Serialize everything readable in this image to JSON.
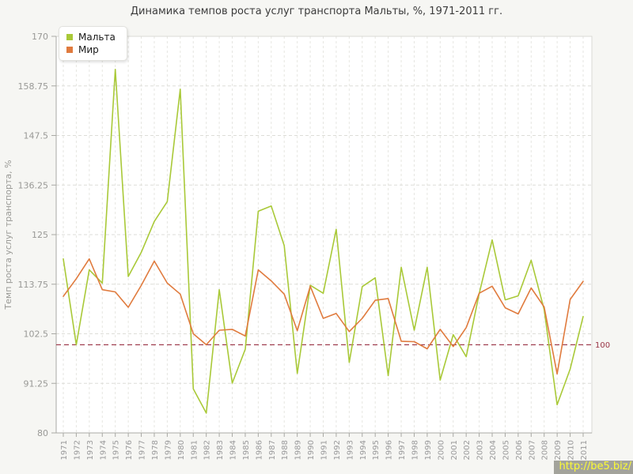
{
  "title": "Динамика темпов роста услуг транспорта Мальты, %, 1971-2011 гг.",
  "watermark": "http://be5.biz/",
  "chart_data": {
    "type": "line",
    "title": "Динамика темпов роста услуг транспорта Мальты, %, 1971-2011 гг.",
    "xlabel": "",
    "ylabel": "Темп роста услуг транспорта, %",
    "ylim": [
      80,
      170
    ],
    "yticks": [
      80,
      91.25,
      102.5,
      113.75,
      125,
      136.25,
      147.5,
      158.75,
      170
    ],
    "grid": true,
    "legend_position": "top-left",
    "x": [
      1971,
      1972,
      1973,
      1974,
      1975,
      1976,
      1977,
      1978,
      1979,
      1980,
      1981,
      1982,
      1983,
      1984,
      1985,
      1986,
      1987,
      1988,
      1989,
      1990,
      1991,
      1992,
      1993,
      1994,
      1995,
      1996,
      1997,
      1998,
      1999,
      2000,
      2001,
      2002,
      2003,
      2004,
      2005,
      2006,
      2007,
      2008,
      2009,
      2010,
      2011
    ],
    "series": [
      {
        "name": "Мальта",
        "color": "#a9c938",
        "values": [
          119.5,
          100,
          117,
          114,
          162.5,
          115.5,
          121,
          128,
          132.5,
          158,
          90,
          84.5,
          112.5,
          91.3,
          99,
          130.3,
          131.5,
          122.5,
          93.5,
          113.5,
          111.7,
          126.2,
          96,
          113.2,
          115.2,
          93,
          117.6,
          103.3,
          117.6,
          92,
          102.3,
          97.3,
          111.6,
          123.8,
          110.2,
          111.1,
          119.2,
          108,
          86.4,
          94.5,
          106.4
        ]
      },
      {
        "name": "Мир",
        "color": "#e07b3e",
        "values": [
          111,
          115,
          119.5,
          112.5,
          112,
          108.5,
          113.5,
          119,
          114,
          111.5,
          102.5,
          100,
          103.3,
          103.5,
          102,
          117,
          114.5,
          111.5,
          103.2,
          113.3,
          106,
          107.1,
          103,
          106,
          110.1,
          110.5,
          100.8,
          100.7,
          99.1,
          103.5,
          99.6,
          103.9,
          111.7,
          113.3,
          108.4,
          107,
          112.9,
          108.6,
          93.4,
          110.3,
          114.4
        ]
      }
    ],
    "reference_line": {
      "value": 100,
      "label": "100",
      "color": "#993344"
    }
  }
}
